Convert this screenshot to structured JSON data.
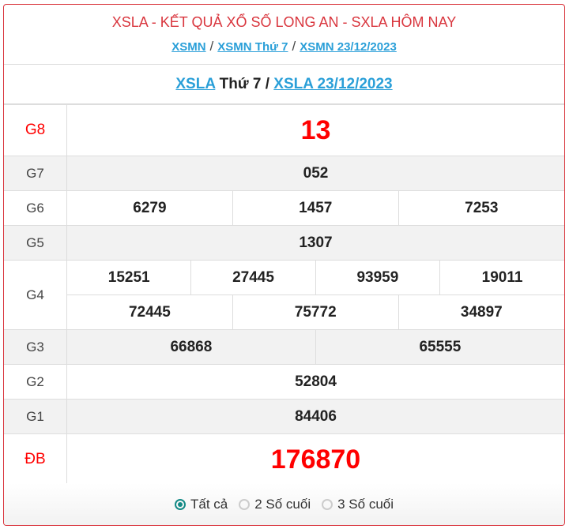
{
  "header": {
    "title": "XSLA - KẾT QUẢ XỔ SỐ LONG AN - SXLA HÔM NAY",
    "breadcrumbs": [
      "XSMN",
      "XSMN Thứ 7",
      "XSMN 23/12/2023"
    ],
    "separator": "/"
  },
  "subtitle": {
    "link1": "XSLA",
    "plain": "Thứ 7 /",
    "link2": "XSLA 23/12/2023"
  },
  "prizes": {
    "g8": {
      "label": "G8",
      "values": [
        "13"
      ]
    },
    "g7": {
      "label": "G7",
      "values": [
        "052"
      ]
    },
    "g6": {
      "label": "G6",
      "values": [
        "6279",
        "1457",
        "7253"
      ]
    },
    "g5": {
      "label": "G5",
      "values": [
        "1307"
      ]
    },
    "g4": {
      "label": "G4",
      "values": [
        "15251",
        "27445",
        "93959",
        "19011",
        "72445",
        "75772",
        "34897"
      ]
    },
    "g3": {
      "label": "G3",
      "values": [
        "66868",
        "65555"
      ]
    },
    "g2": {
      "label": "G2",
      "values": [
        "52804"
      ]
    },
    "g1": {
      "label": "G1",
      "values": [
        "84406"
      ]
    },
    "db": {
      "label": "ĐB",
      "values": [
        "176870"
      ]
    }
  },
  "filter": {
    "options": [
      "Tất cả",
      "2 Số cuối",
      "3 Số cuối"
    ],
    "selected": "Tất cả"
  },
  "colors": {
    "accent": "#d9363e",
    "link": "#2a9fd8",
    "prize_red": "#ff0000",
    "radio": "#138a86"
  }
}
